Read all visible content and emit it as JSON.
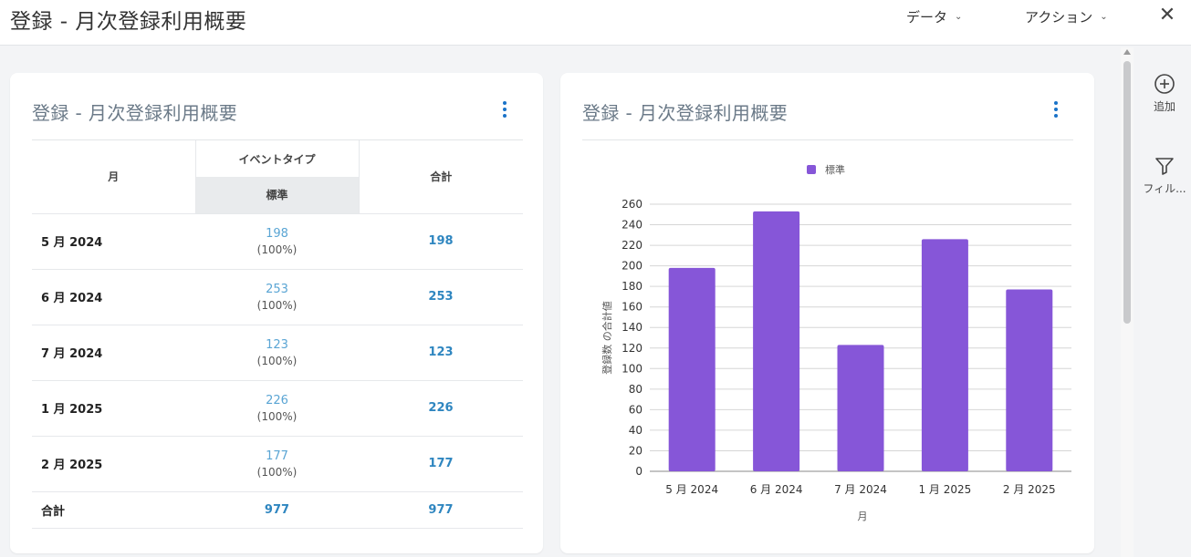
{
  "header": {
    "title": "登録 - 月次登録利用概要",
    "data_menu": "データ",
    "action_menu": "アクション",
    "close_icon": "close-icon"
  },
  "table_card": {
    "title": "登録 - 月次登録利用概要",
    "columns": {
      "month": "月",
      "event_type": "イベントタイプ",
      "standard": "標準",
      "total": "合計"
    },
    "rows": [
      {
        "month": "5 月 2024",
        "value": "198",
        "pct": "(100%)",
        "total": "198"
      },
      {
        "month": "6 月 2024",
        "value": "253",
        "pct": "(100%)",
        "total": "253"
      },
      {
        "month": "7 月 2024",
        "value": "123",
        "pct": "(100%)",
        "total": "123"
      },
      {
        "month": "1 月 2025",
        "value": "226",
        "pct": "(100%)",
        "total": "226"
      },
      {
        "month": "2 月 2025",
        "value": "177",
        "pct": "(100%)",
        "total": "177"
      }
    ],
    "footer": {
      "label": "合計",
      "value": "977",
      "total": "977"
    }
  },
  "chart_card": {
    "title": "登録 - 月次登録利用概要"
  },
  "chart_data": {
    "type": "bar",
    "categories": [
      "5 月 2024",
      "6 月 2024",
      "7 月 2024",
      "1 月 2025",
      "2 月 2025"
    ],
    "series": [
      {
        "name": "標準",
        "values": [
          198,
          253,
          123,
          226,
          177
        ],
        "color": "#8656d8"
      }
    ],
    "xlabel": "月",
    "ylabel": "登録数 の合計値",
    "ylim": [
      0,
      260
    ],
    "yticks": [
      0,
      20,
      40,
      60,
      80,
      100,
      120,
      140,
      160,
      180,
      200,
      220,
      240,
      260
    ],
    "legend_position": "top",
    "grid": true
  },
  "side_tools": {
    "add_label": "追加",
    "filter_label": "フィル...",
    "add_icon": "add-circle-icon",
    "filter_icon": "filter-icon"
  }
}
